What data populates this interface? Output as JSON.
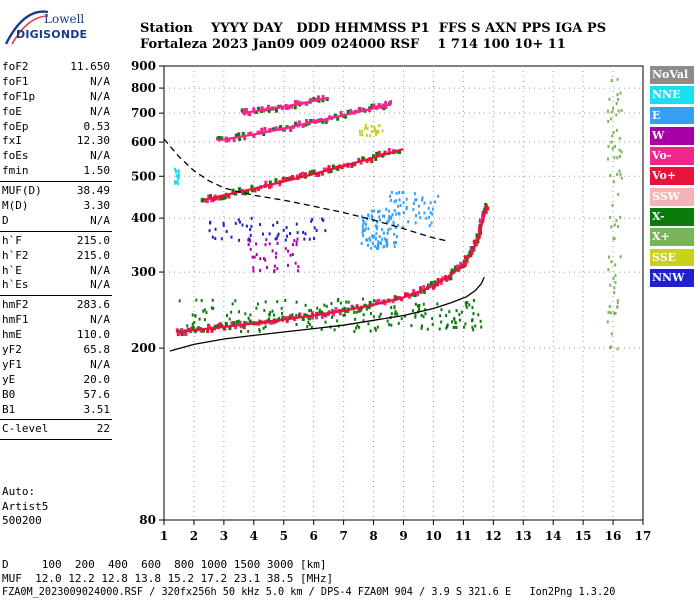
{
  "logo": {
    "line1": "Lowell",
    "line2": "DIGISONDE"
  },
  "header": {
    "row1": "Station    YYYY DAY   DDD HHMMSS P1  FFS S AXN PPS IGA PS",
    "row2": "Fortaleza 2023 Jan09 009 024000 RSF    1 714 100 10+ 11"
  },
  "params": {
    "group1": [
      {
        "name": "foF2",
        "value": "11.650"
      },
      {
        "name": "foF1",
        "value": "N/A"
      },
      {
        "name": "foF1p",
        "value": "N/A"
      },
      {
        "name": "foE",
        "value": "N/A"
      },
      {
        "name": "foEp",
        "value": "0.53"
      },
      {
        "name": "fxI",
        "value": "12.30"
      },
      {
        "name": "foEs",
        "value": "N/A"
      },
      {
        "name": "fmin",
        "value": "1.50"
      }
    ],
    "group2": [
      {
        "name": "MUF(D)",
        "value": "38.49"
      },
      {
        "name": "M(D)",
        "value": "3.30"
      },
      {
        "name": "D",
        "value": "N/A"
      }
    ],
    "group3": [
      {
        "name": "h`F",
        "value": "215.0"
      },
      {
        "name": "h`F2",
        "value": "215.0"
      },
      {
        "name": "h`E",
        "value": "N/A"
      },
      {
        "name": "h`Es",
        "value": "N/A"
      }
    ],
    "group4": [
      {
        "name": "hmF2",
        "value": "283.6"
      },
      {
        "name": "hmF1",
        "value": "N/A"
      },
      {
        "name": "hmE",
        "value": "110.0"
      },
      {
        "name": "yF2",
        "value": "65.8"
      },
      {
        "name": "yF1",
        "value": "N/A"
      },
      {
        "name": "yE",
        "value": "20.0"
      },
      {
        "name": "B0",
        "value": "57.6"
      },
      {
        "name": "B1",
        "value": "3.51"
      }
    ],
    "group5": [
      {
        "name": "C-level",
        "value": "22"
      }
    ]
  },
  "notes": {
    "line1": "Auto:",
    "line2": "Artist5",
    "line3": "500200"
  },
  "legend": [
    {
      "label": "NoVal",
      "color": "#8c8c8c"
    },
    {
      "label": "NNE",
      "color": "#19e0f0"
    },
    {
      "label": "E",
      "color": "#37a0f5"
    },
    {
      "label": "W",
      "color": "#a800a8"
    },
    {
      "label": "Vo-",
      "color": "#f0288c"
    },
    {
      "label": "Vo+",
      "color": "#e6143c"
    },
    {
      "label": "SSW",
      "color": "#f5b4b4"
    },
    {
      "label": "X-",
      "color": "#0a7a0a"
    },
    {
      "label": "X+",
      "color": "#78b45a"
    },
    {
      "label": "SSE",
      "color": "#c8d21e"
    },
    {
      "label": "NNW",
      "color": "#2020d0"
    }
  ],
  "footer": {
    "line1": "D     100  200  400  600  800 1000 1500 3000 [km]",
    "line2": "MUF  12.0 12.2 12.8 13.8 15.2 17.2 23.1 38.5 [MHz]",
    "line3": "FZA0M_2023009024000.RSF / 320fx256h 50 kHz 5.0 km / DPS-4 FZA0M 904 / 3.9 S 321.6 E   Ion2Png 1.3.20"
  },
  "chart_data": {
    "type": "scatter",
    "title": "",
    "xlabel": "",
    "ylabel": "",
    "xlim": [
      1,
      17
    ],
    "ylim": [
      80,
      900
    ],
    "y_scale": "log",
    "x_ticks": [
      1,
      2,
      3,
      4,
      5,
      6,
      7,
      8,
      9,
      10,
      11,
      12,
      13,
      14,
      15,
      16,
      17
    ],
    "y_ticks": [
      80,
      200,
      300,
      400,
      500,
      600,
      700,
      800,
      900
    ],
    "grid": "dotted",
    "series": [
      {
        "name": "Vo+",
        "type": "line",
        "color": "#e6143c",
        "x": [
          1.5,
          2.0,
          3.0,
          4.0,
          5.0,
          6.0,
          7.0,
          8.0,
          9.0,
          9.8,
          10.5,
          11.0,
          11.3,
          11.5,
          11.65,
          11.8
        ],
        "y": [
          218,
          220,
          224,
          228,
          233,
          238,
          244,
          252,
          262,
          275,
          292,
          312,
          335,
          360,
          395,
          430
        ]
      },
      {
        "name": "Vo+",
        "type": "line",
        "color": "#e6143c",
        "x": [
          2.3,
          3,
          4,
          5,
          6,
          7,
          8,
          9
        ],
        "y": [
          440,
          452,
          468,
          486,
          506,
          528,
          552,
          578
        ]
      },
      {
        "name": "Vo-",
        "type": "line",
        "color": "#f0288c",
        "x": [
          2.8,
          4,
          5,
          6,
          7,
          8,
          8.6
        ],
        "y": [
          605,
          625,
          645,
          668,
          692,
          718,
          735
        ]
      },
      {
        "name": "Vo-",
        "type": "line",
        "color": "#f0288c",
        "x": [
          3.6,
          4.5,
          5.5,
          6.5
        ],
        "y": [
          700,
          715,
          735,
          760
        ]
      },
      {
        "name": "",
        "type": "line",
        "color": "#000000",
        "x": [
          1.2,
          2,
          3,
          4,
          5,
          6,
          7,
          8,
          9,
          10,
          10.6,
          11.1,
          11.4,
          11.6,
          11.7
        ],
        "y": [
          197,
          204,
          210,
          214,
          218,
          222,
          226,
          232,
          238,
          247,
          255,
          263,
          272,
          282,
          292
        ]
      },
      {
        "name": "",
        "type": "dashed",
        "color": "#000000",
        "x": [
          1.0,
          1.5,
          2.0,
          2.5,
          3.0,
          3.5,
          4.0,
          5.0,
          6.0,
          7.0,
          8.0,
          9.0,
          10.0,
          10.4
        ],
        "y": [
          610,
          555,
          515,
          488,
          470,
          460,
          452,
          440,
          426,
          412,
          396,
          378,
          360,
          355
        ]
      }
    ],
    "scatter_clusters": [
      {
        "name": "E",
        "color": "#37a0f5",
        "x": [
          7.6,
          8.8
        ],
        "y": [
          340,
          420
        ],
        "count": 90
      },
      {
        "name": "E",
        "color": "#37a0f5",
        "x": [
          8.5,
          10.2
        ],
        "y": [
          380,
          460
        ],
        "count": 50
      },
      {
        "name": "W",
        "color": "#a800a8",
        "x": [
          3.8,
          5.5
        ],
        "y": [
          300,
          360
        ],
        "count": 40
      },
      {
        "name": "X-",
        "color": "#0a7a0a",
        "x": [
          1.5,
          11.6
        ],
        "y": [
          218,
          260
        ],
        "count": 200
      },
      {
        "name": "NNW",
        "color": "#2020d0",
        "x": [
          2.5,
          6.5
        ],
        "y": [
          355,
          400
        ],
        "count": 50
      },
      {
        "name": "SSE",
        "color": "#c8d21e",
        "x": [
          7.5,
          8.3
        ],
        "y": [
          620,
          660
        ],
        "count": 25
      },
      {
        "name": "X+",
        "color": "#78b45a",
        "x": [
          15.8,
          16.3
        ],
        "y": [
          190,
          880
        ],
        "count": 70
      },
      {
        "name": "NNE",
        "color": "#19e0f0",
        "x": [
          1.3,
          1.5
        ],
        "y": [
          480,
          520
        ],
        "count": 15
      }
    ]
  }
}
